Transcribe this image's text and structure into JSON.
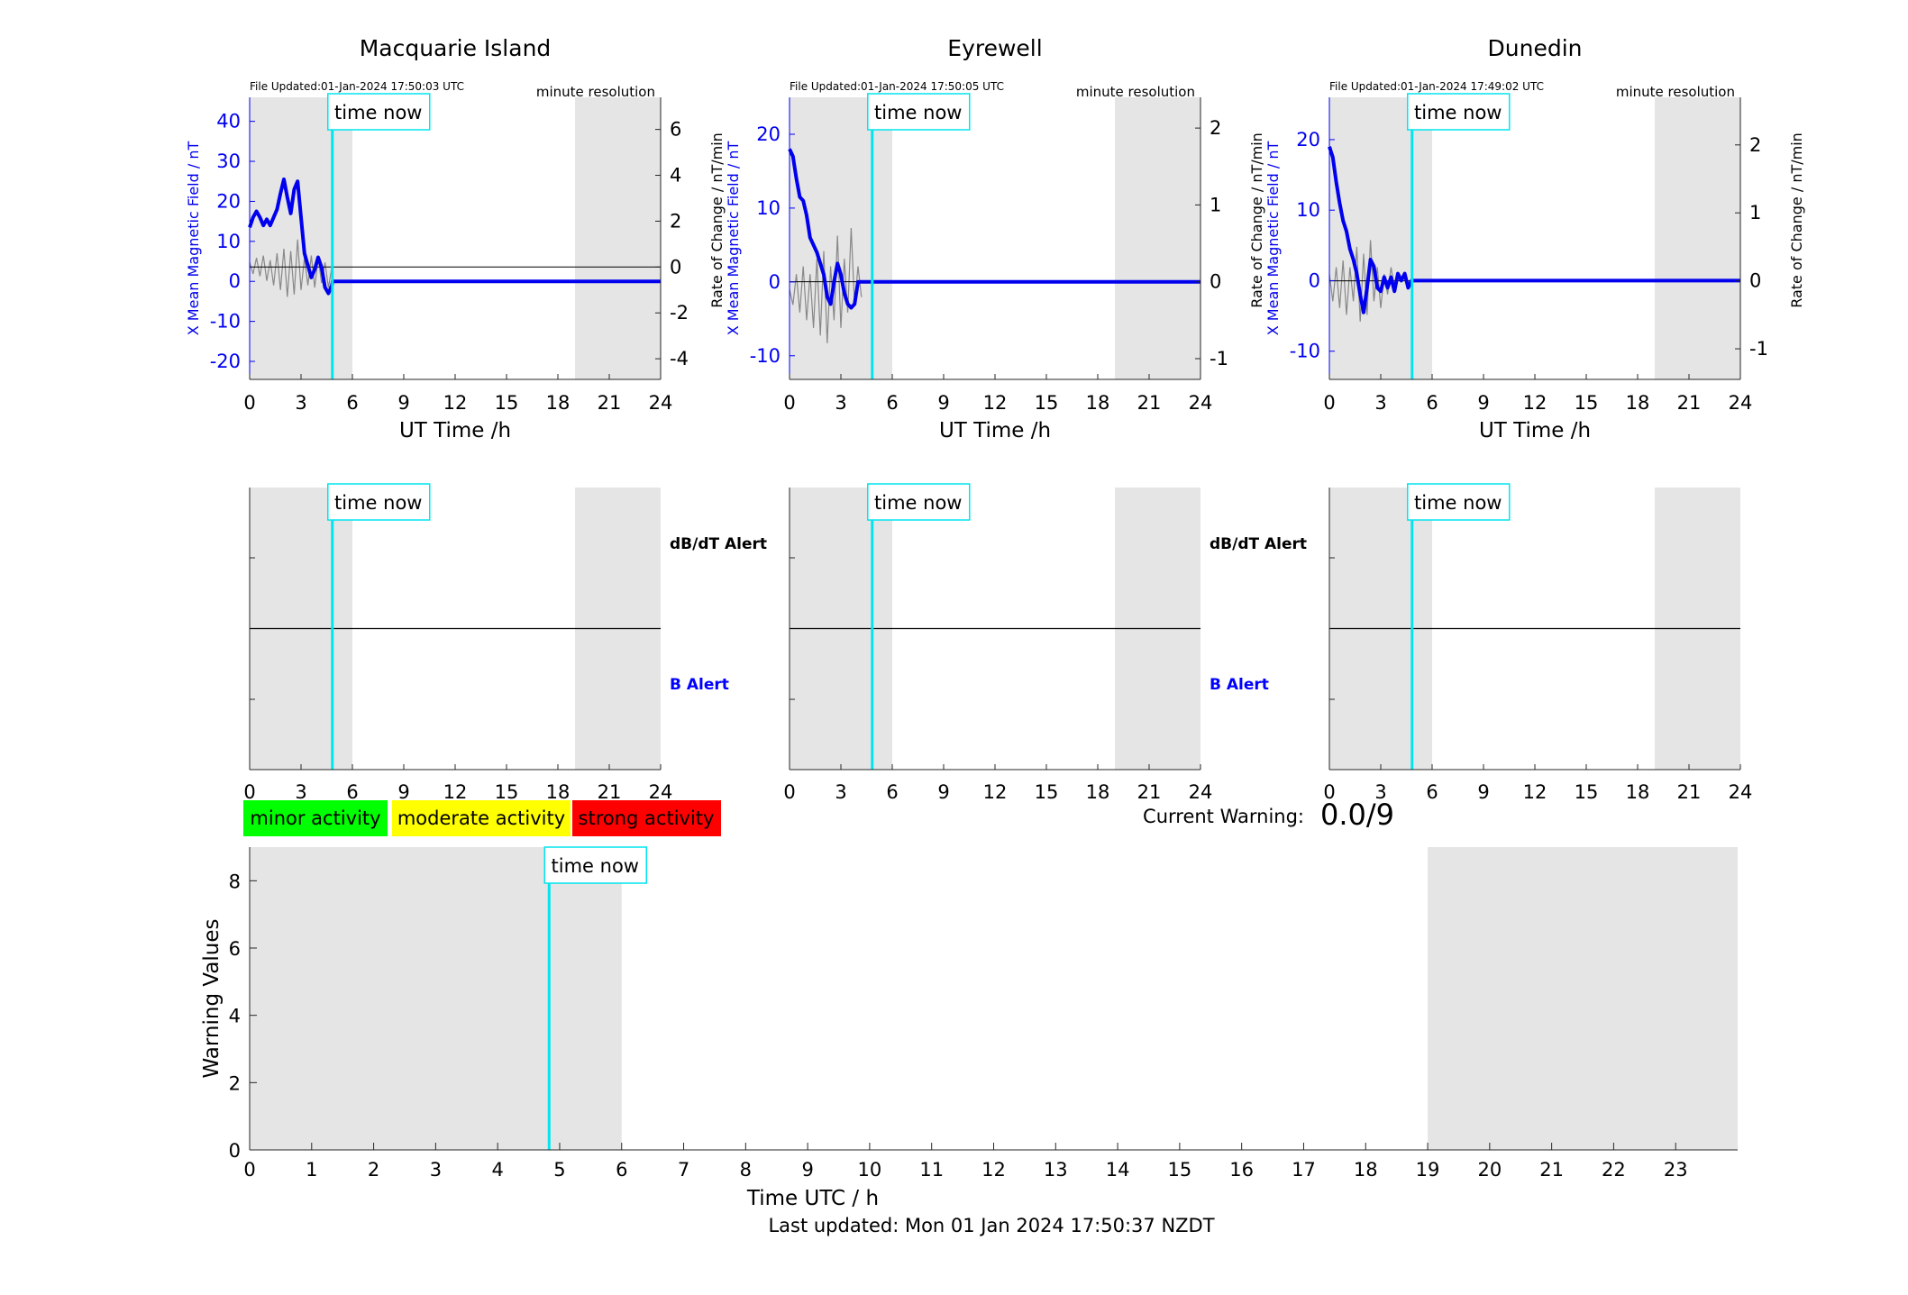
{
  "stations": [
    {
      "name": "Macquarie Island",
      "file_updated": "File Updated:01-Jan-2024 17:50:03 UTC",
      "resolution": "minute resolution",
      "left_ticks": [
        40,
        30,
        20,
        10,
        0,
        -10,
        -20
      ],
      "right_ticks": [
        6,
        4,
        2,
        0,
        -2,
        -4
      ],
      "left_range": [
        -24.5,
        46
      ],
      "right_range": [
        -4.9,
        7.4
      ],
      "left_label": "X Mean Magnetic Field / nT",
      "right_label": "Rate of Change / nT/min",
      "x_label": "UT Time /h",
      "field_line": [
        [
          0,
          13.5
        ],
        [
          0.2,
          16
        ],
        [
          0.4,
          17.5
        ],
        [
          0.6,
          16
        ],
        [
          0.8,
          14
        ],
        [
          1.0,
          15.5
        ],
        [
          1.2,
          14
        ],
        [
          1.4,
          16
        ],
        [
          1.6,
          18
        ],
        [
          1.8,
          22
        ],
        [
          2.0,
          25.5
        ],
        [
          2.2,
          21
        ],
        [
          2.4,
          17
        ],
        [
          2.6,
          23
        ],
        [
          2.8,
          25
        ],
        [
          3.0,
          16
        ],
        [
          3.2,
          7
        ],
        [
          3.4,
          4
        ],
        [
          3.6,
          1
        ],
        [
          3.8,
          3
        ],
        [
          4.0,
          6
        ],
        [
          4.2,
          3.5
        ],
        [
          4.4,
          -1.5
        ],
        [
          4.6,
          -3
        ],
        [
          4.8,
          -1
        ],
        [
          4.85,
          0
        ],
        [
          24,
          0
        ]
      ],
      "rate_line": [
        [
          0,
          0.2
        ],
        [
          0.2,
          -0.3
        ],
        [
          0.4,
          0.4
        ],
        [
          0.6,
          -0.4
        ],
        [
          0.8,
          0.5
        ],
        [
          1.0,
          -0.6
        ],
        [
          1.2,
          0.3
        ],
        [
          1.4,
          -0.8
        ],
        [
          1.6,
          0.6
        ],
        [
          1.8,
          -1.0
        ],
        [
          2.0,
          0.8
        ],
        [
          2.2,
          -1.3
        ],
        [
          2.4,
          0.7
        ],
        [
          2.6,
          -1.2
        ],
        [
          2.8,
          1.2
        ],
        [
          3.0,
          -1.0
        ],
        [
          3.2,
          0.4
        ],
        [
          3.4,
          -0.8
        ],
        [
          3.6,
          0.5
        ],
        [
          3.8,
          -0.9
        ],
        [
          4.0,
          0.4
        ],
        [
          4.2,
          -0.7
        ],
        [
          4.4,
          0.2
        ],
        [
          4.6,
          -0.9
        ],
        [
          4.8,
          0
        ]
      ]
    },
    {
      "name": "Eyrewell",
      "file_updated": "File Updated:01-Jan-2024 17:50:05 UTC",
      "resolution": "minute resolution",
      "left_ticks": [
        20,
        10,
        0,
        -10
      ],
      "right_ticks": [
        2,
        1,
        0,
        -1
      ],
      "left_range": [
        -13.2,
        25
      ],
      "right_range": [
        -1.27,
        2.4
      ],
      "left_label": "X Mean Magnetic Field / nT",
      "right_label": "Rate of Change / nT/min",
      "x_label": "UT Time /h",
      "field_line": [
        [
          0,
          18
        ],
        [
          0.2,
          17
        ],
        [
          0.4,
          14
        ],
        [
          0.6,
          11.5
        ],
        [
          0.8,
          11
        ],
        [
          1.0,
          9
        ],
        [
          1.2,
          6
        ],
        [
          1.4,
          5
        ],
        [
          1.6,
          4
        ],
        [
          1.8,
          2.5
        ],
        [
          2.0,
          1
        ],
        [
          2.2,
          -2
        ],
        [
          2.4,
          -3
        ],
        [
          2.6,
          0
        ],
        [
          2.8,
          2.5
        ],
        [
          3.0,
          1
        ],
        [
          3.2,
          -1.5
        ],
        [
          3.4,
          -3
        ],
        [
          3.6,
          -3.5
        ],
        [
          3.8,
          -3
        ],
        [
          4.0,
          0
        ],
        [
          4.8,
          0
        ],
        [
          24,
          0
        ]
      ],
      "rate_line": [
        [
          0,
          -0.1
        ],
        [
          0.2,
          -0.3
        ],
        [
          0.4,
          0.1
        ],
        [
          0.6,
          -0.4
        ],
        [
          0.8,
          0.2
        ],
        [
          1.0,
          -0.5
        ],
        [
          1.2,
          0.1
        ],
        [
          1.4,
          -0.6
        ],
        [
          1.6,
          0.3
        ],
        [
          1.8,
          -0.7
        ],
        [
          2.0,
          0.4
        ],
        [
          2.2,
          -0.8
        ],
        [
          2.4,
          0.2
        ],
        [
          2.6,
          -0.5
        ],
        [
          2.8,
          0.6
        ],
        [
          3.0,
          -0.6
        ],
        [
          3.2,
          0.3
        ],
        [
          3.4,
          -0.4
        ],
        [
          3.6,
          0.7
        ],
        [
          3.8,
          -0.3
        ],
        [
          4.0,
          0.2
        ],
        [
          4.2,
          -0.2
        ]
      ]
    },
    {
      "name": "Dunedin",
      "file_updated": "File Updated:01-Jan-2024 17:49:02 UTC",
      "resolution": "minute resolution",
      "left_ticks": [
        20,
        10,
        0,
        -10
      ],
      "right_ticks": [
        2,
        1,
        0,
        -1
      ],
      "left_range": [
        -14,
        26
      ],
      "right_range": [
        -1.45,
        2.7
      ],
      "left_label": "X Mean Magnetic Field / nT",
      "right_label": "Rate of Change / nT/min",
      "x_label": "UT Time /h",
      "field_line": [
        [
          0,
          19
        ],
        [
          0.2,
          17.5
        ],
        [
          0.4,
          14
        ],
        [
          0.6,
          11
        ],
        [
          0.8,
          8.5
        ],
        [
          1.0,
          7
        ],
        [
          1.2,
          4.5
        ],
        [
          1.4,
          3
        ],
        [
          1.6,
          1
        ],
        [
          1.8,
          -2
        ],
        [
          2.0,
          -4.5
        ],
        [
          2.2,
          -1
        ],
        [
          2.4,
          3
        ],
        [
          2.6,
          2
        ],
        [
          2.8,
          -1
        ],
        [
          3.0,
          -1.5
        ],
        [
          3.2,
          0.5
        ],
        [
          3.4,
          -1
        ],
        [
          3.6,
          0.5
        ],
        [
          3.8,
          -1.5
        ],
        [
          4.0,
          1
        ],
        [
          4.2,
          0
        ],
        [
          4.4,
          1
        ],
        [
          4.6,
          -1
        ],
        [
          4.8,
          0
        ],
        [
          24,
          0
        ]
      ],
      "rate_line": [
        [
          0,
          0.1
        ],
        [
          0.2,
          -0.3
        ],
        [
          0.4,
          0.2
        ],
        [
          0.6,
          -0.4
        ],
        [
          0.8,
          0.3
        ],
        [
          1.0,
          -0.5
        ],
        [
          1.2,
          0.2
        ],
        [
          1.4,
          -0.3
        ],
        [
          1.6,
          0.5
        ],
        [
          1.8,
          -0.6
        ],
        [
          2.0,
          0.4
        ],
        [
          2.2,
          -0.5
        ],
        [
          2.4,
          0.6
        ],
        [
          2.6,
          -0.3
        ],
        [
          2.8,
          0.2
        ],
        [
          3.0,
          -0.4
        ],
        [
          3.2,
          0.1
        ],
        [
          3.4,
          -0.2
        ],
        [
          3.6,
          0.2
        ],
        [
          3.8,
          -0.1
        ]
      ]
    }
  ],
  "x_ticks": [
    0,
    3,
    6,
    9,
    12,
    15,
    18,
    21,
    24
  ],
  "time_now_label": "time now",
  "alert_labels": {
    "dbdt": "dB/dT Alert",
    "b": "B Alert"
  },
  "legend": [
    {
      "label": "minor activity",
      "color": "#00ff00"
    },
    {
      "label": "moderate activity",
      "color": "#ffff00"
    },
    {
      "label": "strong activity",
      "color": "#ff0000"
    }
  ],
  "current_warning_label": "Current Warning:",
  "current_warning_value": "0.0/9",
  "chart_data": {
    "type": "line",
    "title": "",
    "xlabel": "Time UTC / h",
    "ylabel": "Warning Values",
    "xlim": [
      0,
      24
    ],
    "ylim": [
      0,
      9
    ],
    "x_ticks": [
      0,
      1,
      2,
      3,
      4,
      5,
      6,
      7,
      8,
      9,
      10,
      11,
      12,
      13,
      14,
      15,
      16,
      17,
      18,
      19,
      20,
      21,
      22,
      23
    ],
    "y_ticks": [
      0,
      2,
      4,
      6,
      8
    ],
    "time_now_h": 4.83,
    "night_shading_h": [
      [
        0,
        6
      ],
      [
        19,
        24
      ]
    ],
    "series": []
  },
  "footer": "Last updated: Mon 01 Jan 2024 17:50:37 NZDT",
  "colors": {
    "field": "#0000ee",
    "rate": "#888888",
    "time_now": "#00e5ee",
    "shade": "#e5e5e5",
    "axis": "#262626",
    "b_alert": "#0000ff"
  }
}
